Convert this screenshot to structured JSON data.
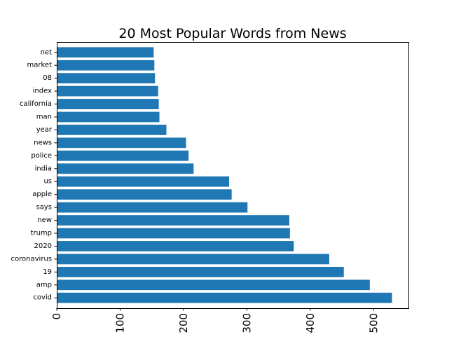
{
  "chart_data": {
    "type": "bar",
    "orientation": "horizontal",
    "title": "20 Most Popular Words from News",
    "xlabel": "",
    "ylabel": "",
    "categories": [
      "covid",
      "amp",
      "19",
      "coronavirus",
      "2020",
      "trump",
      "new",
      "says",
      "apple",
      "us",
      "india",
      "police",
      "news",
      "year",
      "man",
      "california",
      "index",
      "08",
      "market",
      "net"
    ],
    "values": [
      529,
      494,
      453,
      430,
      374,
      368,
      367,
      301,
      276,
      272,
      216,
      208,
      204,
      173,
      162,
      161,
      160,
      155,
      154,
      153
    ],
    "xlim": [
      0,
      555
    ],
    "xticks": [
      0,
      100,
      200,
      300,
      400,
      500
    ],
    "xtick_rotation": "vertical",
    "grid": false,
    "legend": "none",
    "bar_color": "#1f77b4"
  }
}
